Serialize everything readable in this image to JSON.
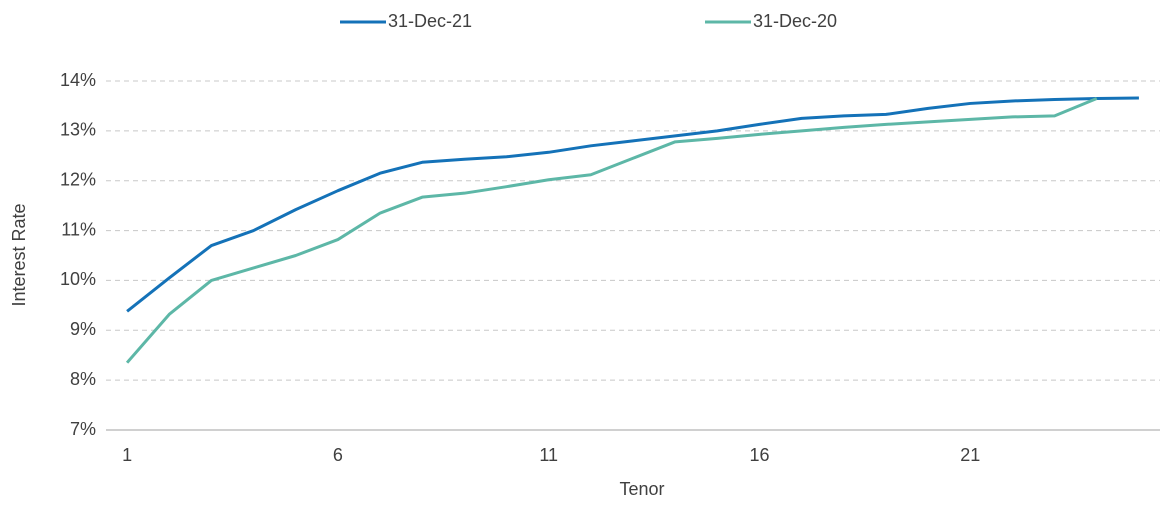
{
  "chart_data": {
    "type": "line",
    "x_label": "Tenor",
    "y_label": "Interest Rate",
    "x": [
      1,
      2,
      3,
      4,
      5,
      6,
      7,
      8,
      9,
      10,
      11,
      12,
      13,
      14,
      15,
      16,
      17,
      18,
      19,
      20,
      21,
      22,
      23,
      24,
      25
    ],
    "series": [
      {
        "name": "31-Dec-21",
        "color": "#1472b8",
        "values": [
          9.38,
          10.05,
          10.7,
          11.0,
          11.42,
          11.8,
          12.15,
          12.37,
          12.43,
          12.48,
          12.57,
          12.7,
          12.8,
          12.9,
          13.0,
          13.13,
          13.25,
          13.3,
          13.33,
          13.45,
          13.55,
          13.6,
          13.63,
          13.65,
          13.66
        ]
      },
      {
        "name": "31-Dec-20",
        "color": "#5db7a7",
        "values": [
          8.35,
          9.32,
          10.0,
          10.25,
          10.5,
          10.82,
          11.35,
          11.67,
          11.75,
          11.88,
          12.02,
          12.12,
          12.45,
          12.78,
          12.85,
          12.93,
          13.0,
          13.07,
          13.13,
          13.18,
          13.23,
          13.28,
          13.3,
          13.65,
          null
        ]
      }
    ],
    "xlim": [
      0.5,
      25.5
    ],
    "xticks": [
      1,
      6,
      11,
      16,
      21
    ],
    "ylim": [
      7,
      14
    ],
    "yticks": [
      {
        "value": 7,
        "label": "7%"
      },
      {
        "value": 8,
        "label": "8%"
      },
      {
        "value": 9,
        "label": "9%"
      },
      {
        "value": 10,
        "label": "10%"
      },
      {
        "value": 11,
        "label": "11%"
      },
      {
        "value": 12,
        "label": "12%"
      },
      {
        "value": 13,
        "label": "13%"
      },
      {
        "value": 14,
        "label": "14%"
      }
    ],
    "grid": true,
    "legend": "top"
  }
}
